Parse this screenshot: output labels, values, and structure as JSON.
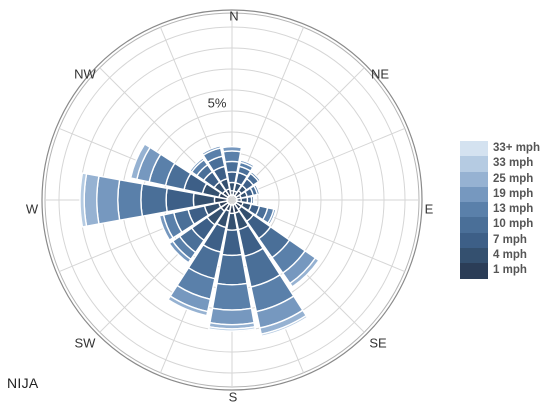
{
  "chart_data": {
    "type": "polar-bar",
    "title": "",
    "station": "NIJA",
    "directions": [
      "N",
      "NNE",
      "NE",
      "ENE",
      "E",
      "ESE",
      "SE",
      "SSE",
      "S",
      "SSW",
      "SW",
      "WSW",
      "W",
      "WNW",
      "NW",
      "NNW"
    ],
    "compass_labels": [
      "N",
      "NE",
      "E",
      "SE",
      "S",
      "SW",
      "W",
      "NW"
    ],
    "ring_label": "5%",
    "ring_unit_percent": 1,
    "max_ring_percent": 8,
    "speed_bins": [
      "1 mph",
      "4 mph",
      "7 mph",
      "10 mph",
      "13 mph",
      "19 mph",
      "25 mph",
      "33 mph",
      "33+ mph"
    ],
    "colors": [
      "#2b3d57",
      "#34506f",
      "#3d5f87",
      "#4a6f98",
      "#5a80aa",
      "#7698bf",
      "#96b2d2",
      "#b5cbe2",
      "#d4e2f0"
    ],
    "percent_by_direction": [
      [
        0.2,
        0.4,
        0.5,
        0.5,
        0.5,
        0.2,
        0,
        0,
        0
      ],
      [
        0.2,
        0.4,
        0.5,
        0.3,
        0.2,
        0.1,
        0,
        0,
        0
      ],
      [
        0.3,
        0.3,
        0.4,
        0.3,
        0.1,
        0,
        0,
        0,
        0
      ],
      [
        0.2,
        0.3,
        0.3,
        0.2,
        0.1,
        0,
        0,
        0,
        0
      ],
      [
        0.2,
        0.3,
        0.2,
        0.1,
        0,
        0,
        0,
        0,
        0
      ],
      [
        0.3,
        0.4,
        0.4,
        0.4,
        0.3,
        0.1,
        0,
        0,
        0
      ],
      [
        0.3,
        0.7,
        1.0,
        1.1,
        0.9,
        0.6,
        0.2,
        0,
        0
      ],
      [
        0.4,
        0.8,
        1.3,
        1.5,
        1.2,
        0.8,
        0.3,
        0.1,
        0
      ],
      [
        0.4,
        0.8,
        1.2,
        1.4,
        1.2,
        0.7,
        0.2,
        0.1,
        0
      ],
      [
        0.3,
        0.8,
        1.2,
        1.3,
        1.0,
        0.6,
        0.2,
        0,
        0
      ],
      [
        0.4,
        0.8,
        0.9,
        0.7,
        0.4,
        0.2,
        0,
        0,
        0
      ],
      [
        0.4,
        0.7,
        0.8,
        0.7,
        0.5,
        0.2,
        0,
        0,
        0
      ],
      [
        0.6,
        1.0,
        1.3,
        1.2,
        1.1,
        1.0,
        0.6,
        0.2,
        0
      ],
      [
        0.4,
        0.8,
        0.9,
        0.9,
        0.8,
        0.6,
        0.3,
        0,
        0
      ],
      [
        0.3,
        0.5,
        0.6,
        0.4,
        0.3,
        0.1,
        0,
        0,
        0
      ],
      [
        0.3,
        0.5,
        0.6,
        0.5,
        0.4,
        0.1,
        0,
        0,
        0
      ]
    ],
    "legend_labels_top_to_bottom": [
      "33+ mph",
      "33 mph",
      "25 mph",
      "19 mph",
      "13 mph",
      "10 mph",
      "7 mph",
      "4 mph",
      "1 mph"
    ],
    "grid": true,
    "legend_position": "right"
  }
}
